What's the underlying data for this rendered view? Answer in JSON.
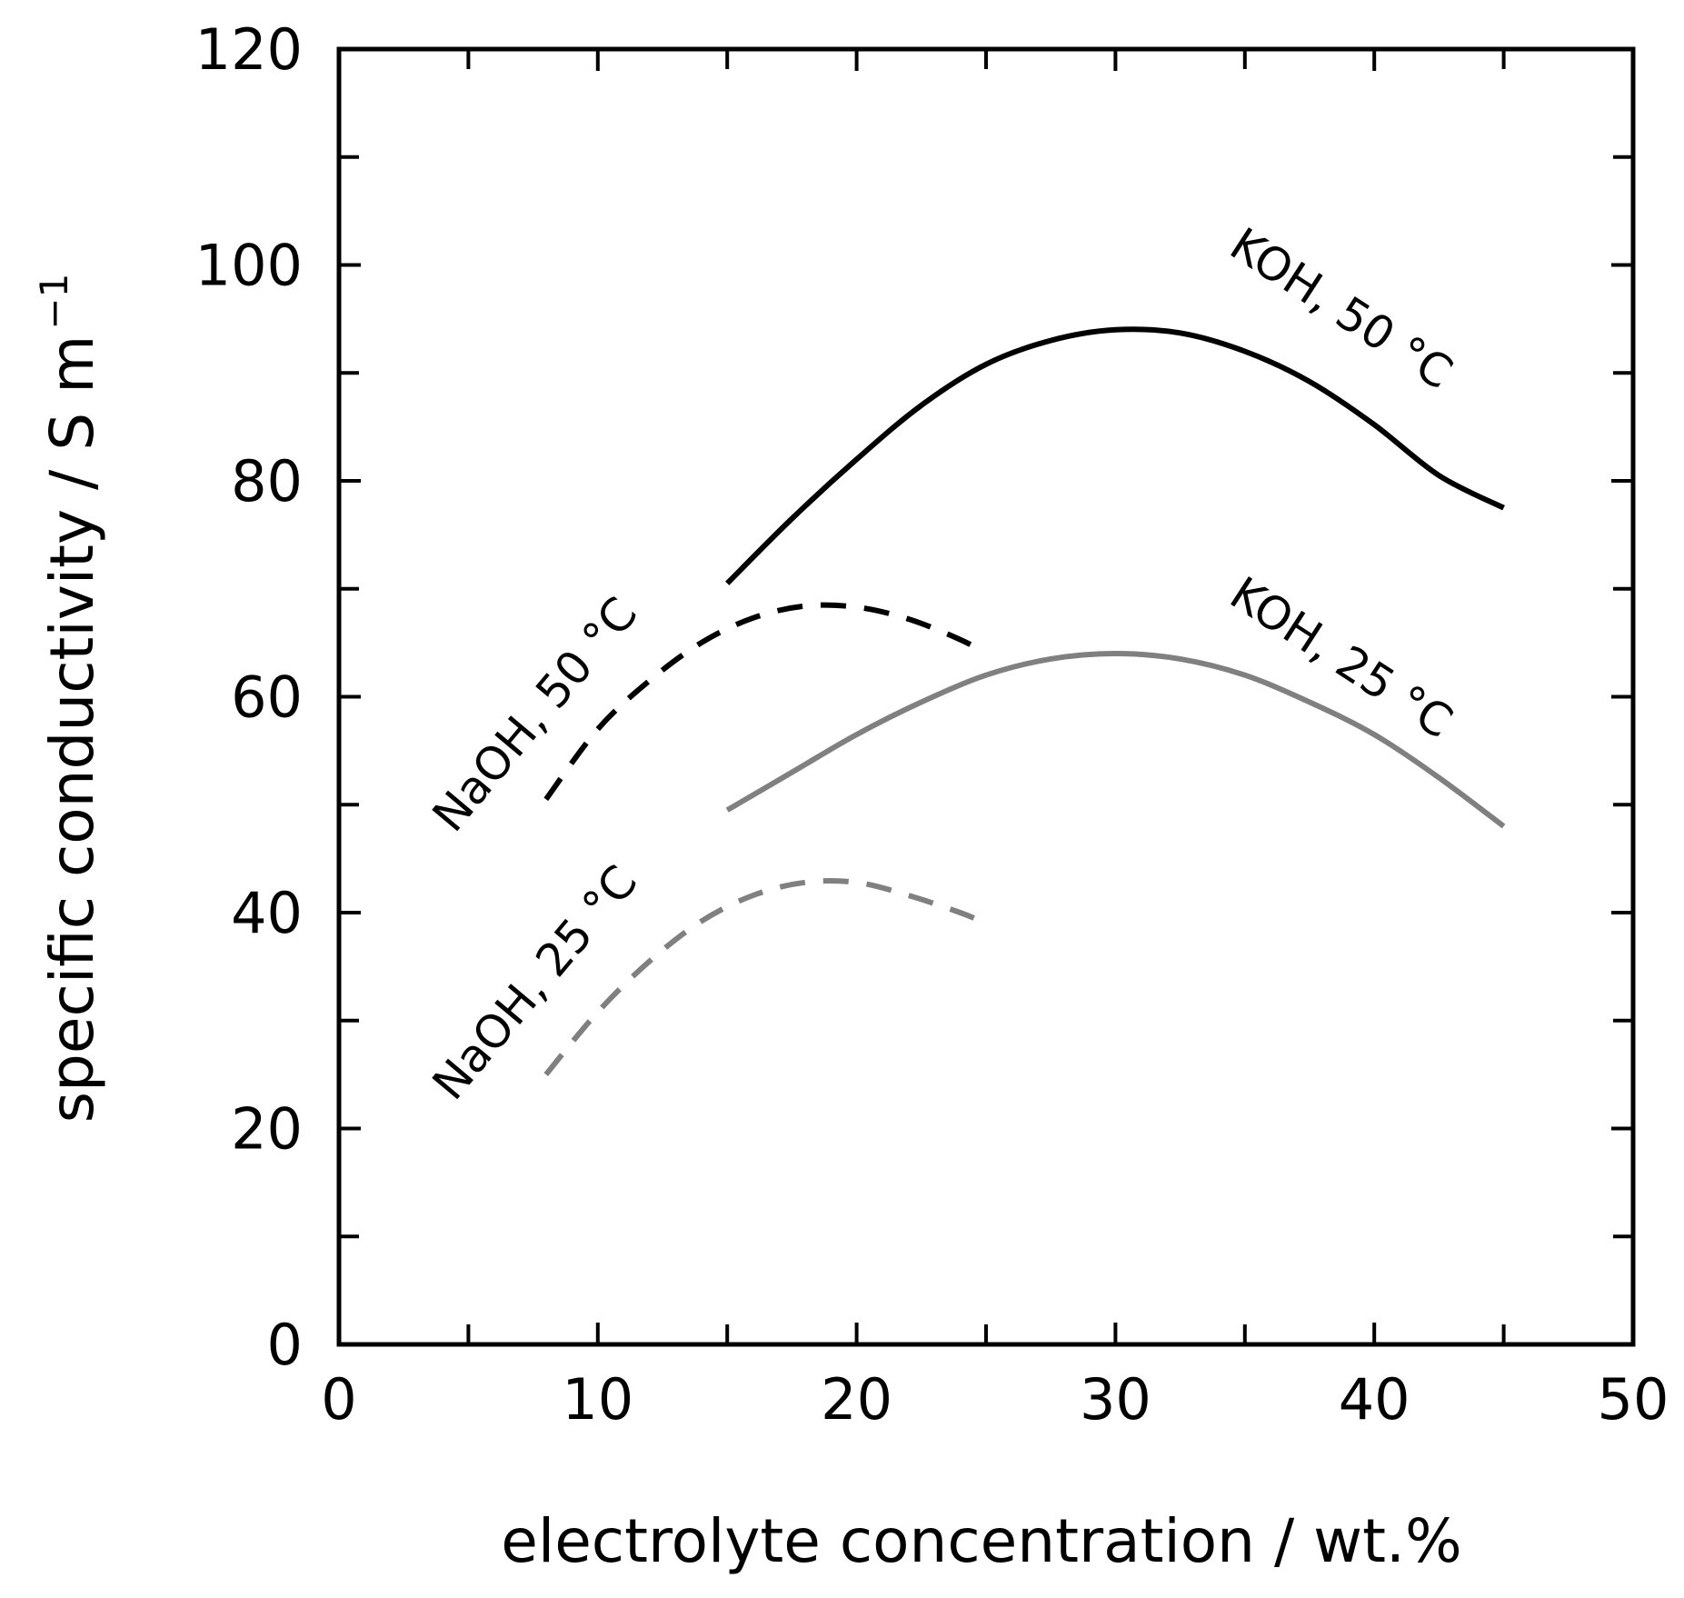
{
  "chart_data": {
    "type": "line",
    "xlabel": "electrolyte concentration / wt.%",
    "ylabel": "specific conductivity / S m",
    "ylabel_superscript": "−1",
    "xlim": [
      0,
      50
    ],
    "ylim": [
      0,
      120
    ],
    "x_ticks": [
      0,
      10,
      20,
      30,
      40,
      50
    ],
    "y_ticks": [
      0,
      20,
      40,
      60,
      80,
      100,
      120
    ],
    "x_minor_ticks": [
      5,
      15,
      25,
      35,
      45
    ],
    "y_minor_ticks": [
      10,
      30,
      50,
      70,
      90,
      110
    ],
    "grid": false,
    "series": [
      {
        "name": "KOH, 50 °C",
        "color": "#000000",
        "dashed": false,
        "x": [
          15,
          17.5,
          20,
          22.5,
          25,
          27.5,
          30,
          32.5,
          35,
          37.5,
          40,
          42.5,
          45
        ],
        "y": [
          70.5,
          76.5,
          82,
          87,
          90.8,
          93,
          94,
          93.7,
          92,
          89.2,
          85.2,
          80.5,
          77.5
        ]
      },
      {
        "name": "KOH, 25 °C",
        "color": "#808080",
        "dashed": false,
        "x": [
          15,
          17.5,
          20,
          22.5,
          25,
          27.5,
          30,
          32.5,
          35,
          37.5,
          40,
          42.5,
          45
        ],
        "y": [
          49.5,
          53,
          56.5,
          59.5,
          62,
          63.5,
          64,
          63.5,
          62,
          59.5,
          56.5,
          52.5,
          48
        ]
      },
      {
        "name": "NaOH, 50 °C",
        "color": "#000000",
        "dashed": true,
        "x": [
          8,
          10,
          12,
          14,
          16,
          18,
          20,
          22,
          24,
          25
        ],
        "y": [
          50.5,
          57,
          61.5,
          65,
          67.3,
          68.4,
          68.3,
          67.2,
          65.3,
          64
        ]
      },
      {
        "name": "NaOH, 25 °C",
        "color": "#808080",
        "dashed": true,
        "x": [
          8,
          10,
          12,
          14,
          16,
          18,
          20,
          22,
          24,
          25
        ],
        "y": [
          25,
          30.8,
          35.5,
          39.2,
          41.6,
          42.8,
          42.8,
          41.6,
          40,
          39
        ]
      }
    ],
    "annotations": [
      {
        "text": "KOH, 50 °C",
        "series": 0
      },
      {
        "text": "KOH, 25 °C",
        "series": 1
      },
      {
        "text": "NaOH, 50 °C",
        "series": 2
      },
      {
        "text": "NaOH, 25 °C",
        "series": 3
      }
    ]
  }
}
